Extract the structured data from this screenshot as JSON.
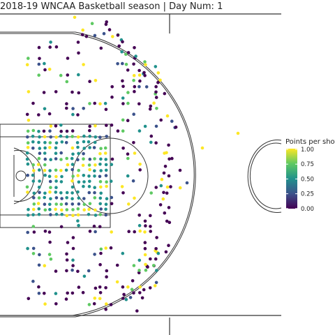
{
  "chart_data": {
    "type": "scatter",
    "title": "2018-19 WNCAA Basketball season | Day Num: 1",
    "xlabel": "",
    "ylabel": "",
    "colorbar": {
      "title": "Points per shot",
      "range": [
        0,
        1
      ],
      "ticks": [
        "1.00",
        "0.75",
        "0.50",
        "0.25",
        "0.00"
      ],
      "palette": [
        "#440154",
        "#3b528b",
        "#21918c",
        "#5ec962",
        "#fde725"
      ]
    },
    "court": {
      "length_ft": 94,
      "width_ft": 50,
      "orientation": "horizontal"
    },
    "grid": false,
    "legend_position": "right",
    "points_note": "Shot locations: x in ft from left baseline, y in ft from bottom sideline, v = points per shot",
    "points": []
  }
}
